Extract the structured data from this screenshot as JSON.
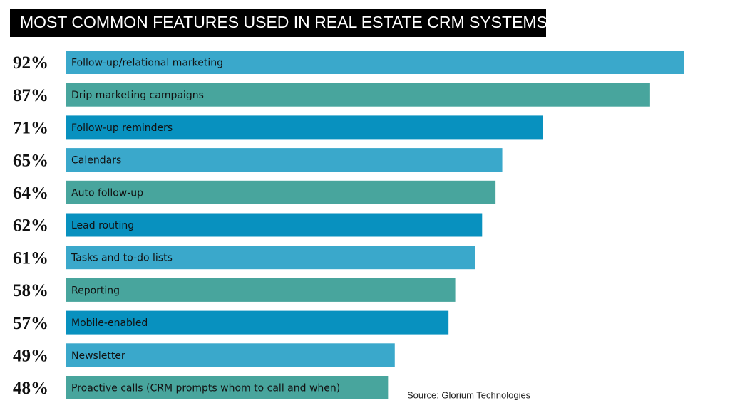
{
  "chart_data": {
    "type": "hbar",
    "title": "MOST COMMON FEATURES USED IN REAL ESTATE CRM SYSTEMS",
    "source": "Source: Glorium Technologies",
    "categories": [
      "Follow-up/relational marketing",
      "Drip marketing campaigns",
      "Follow-up reminders",
      "Calendars",
      "Auto follow-up",
      "Lead routing",
      "Tasks and to-do lists",
      "Reporting",
      "Mobile-enabled",
      "Newsletter",
      "Proactive calls (CRM prompts whom to call and when)"
    ],
    "values": [
      92,
      87,
      71,
      65,
      64,
      62,
      61,
      58,
      57,
      49,
      48
    ],
    "value_labels": [
      "92%",
      "87%",
      "71%",
      "65%",
      "64%",
      "62%",
      "61%",
      "58%",
      "57%",
      "49%",
      "48%"
    ],
    "colors": [
      "#3aa8cb",
      "#48a59d",
      "#0891bf",
      "#3aa8cb",
      "#48a59d",
      "#0891bf",
      "#3aa8cb",
      "#48a59d",
      "#0891bf",
      "#3aa8cb",
      "#48a59d"
    ]
  }
}
